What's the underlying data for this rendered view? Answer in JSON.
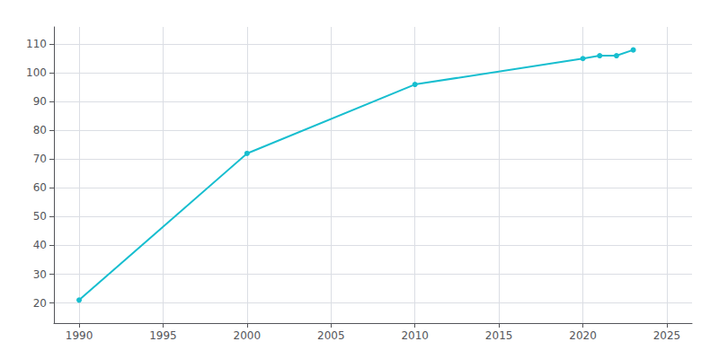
{
  "chart_data": {
    "type": "line",
    "x": [
      1990,
      2000,
      2010,
      2020,
      2021,
      2022,
      2023
    ],
    "values": [
      21,
      72,
      96,
      105,
      106,
      106,
      108
    ],
    "color": "#17becf",
    "marker": "circle",
    "xlim": [
      1988.5,
      2026.5
    ],
    "ylim": [
      13,
      116
    ],
    "xticks": [
      1990,
      1995,
      2000,
      2005,
      2010,
      2015,
      2020,
      2025
    ],
    "yticks": [
      20,
      30,
      40,
      50,
      60,
      70,
      80,
      90,
      100,
      110
    ],
    "grid": true
  }
}
